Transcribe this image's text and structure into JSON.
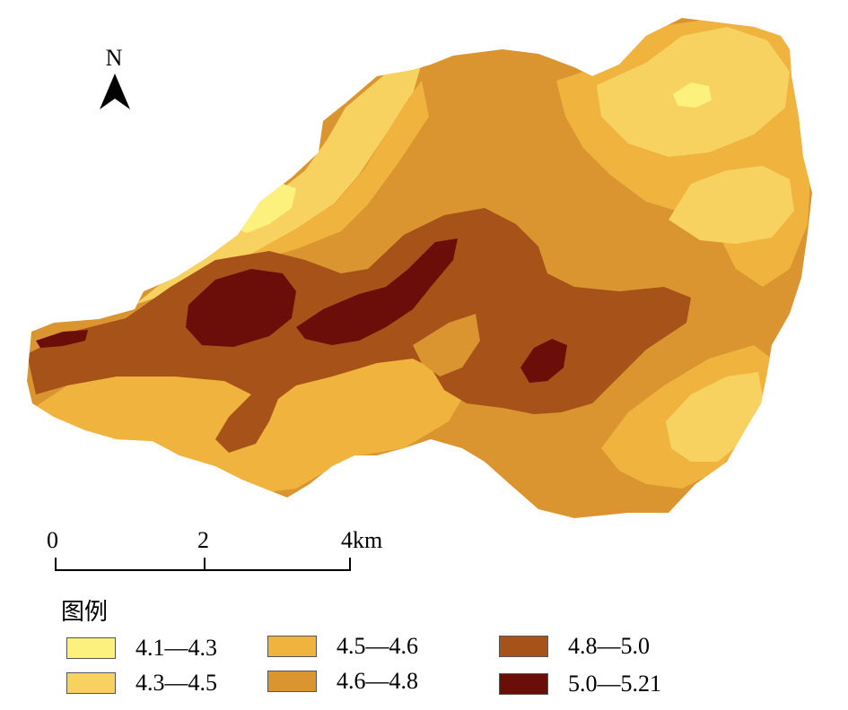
{
  "north": {
    "label": "N",
    "icon": "north-arrow-icon"
  },
  "scale": {
    "ticks": [
      "0",
      "2",
      "4km"
    ]
  },
  "legend": {
    "title": "图例",
    "items": [
      {
        "label": "4.1—4.3",
        "color": "#FDF17E"
      },
      {
        "label": "4.3—4.5",
        "color": "#F8D260"
      },
      {
        "label": "4.5—4.6",
        "color": "#F0B43E"
      },
      {
        "label": "4.6—4.8",
        "color": "#DA9430"
      },
      {
        "label": "4.8—5.0",
        "color": "#A75218"
      },
      {
        "label": "5.0—5.21",
        "color": "#6B0D08"
      }
    ]
  },
  "zone_colors": {
    "c1": "#FDF17E",
    "c2": "#F8D260",
    "c3": "#F0B43E",
    "c4": "#DA9430",
    "c5": "#A75218",
    "c6": "#6B0D08"
  }
}
